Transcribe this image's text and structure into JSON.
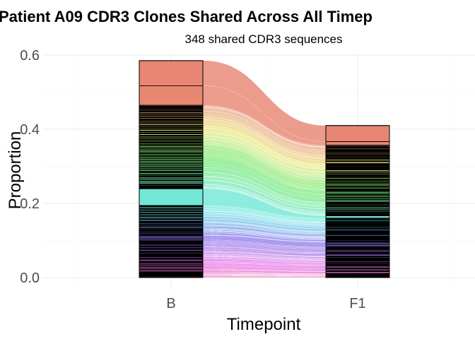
{
  "chart_data": {
    "type": "area",
    "subtype": "alluvial",
    "title": "Patient A09 CDR3 Clones Shared Across All Timep",
    "subtitle": "348 shared CDR3 sequences",
    "xlabel": "Timepoint",
    "ylabel": "Proportion",
    "categories": [
      "B",
      "F1"
    ],
    "ylim": [
      -0.03,
      0.62
    ],
    "y_ticks": [
      0.0,
      0.2,
      0.4,
      0.6
    ],
    "y_tick_labels": [
      "0.0",
      "0.2",
      "0.4",
      "0.6"
    ],
    "grid": true,
    "legend": "none",
    "totals": [
      0.585,
      0.41
    ],
    "clone_count": 348,
    "color_scale": "hue"
  }
}
